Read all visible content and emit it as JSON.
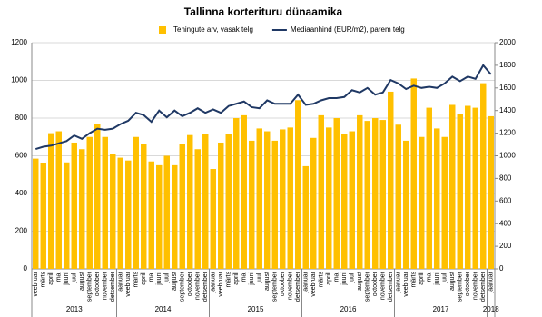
{
  "chart_data": {
    "type": "bar",
    "title": "Tallinna korterituru dünaamika",
    "groups": [
      {
        "label": "2013",
        "categories": [
          "veebruar",
          "märts",
          "aprill",
          "mai",
          "juuni",
          "juuli",
          "august",
          "september",
          "oktoober",
          "november",
          "detsember"
        ]
      },
      {
        "label": "2014",
        "categories": [
          "jaanuar",
          "veebruar",
          "märts",
          "aprill",
          "mai",
          "juuni",
          "juuli",
          "august",
          "september",
          "oktoober",
          "november",
          "detsember"
        ]
      },
      {
        "label": "2015",
        "categories": [
          "jaanuar",
          "veebruar",
          "märts",
          "aprill",
          "mai",
          "juuni",
          "juuli",
          "august",
          "september",
          "oktoober",
          "november",
          "detsember"
        ]
      },
      {
        "label": "2016",
        "categories": [
          "jaanuar",
          "veebruar",
          "märts",
          "aprill",
          "mai",
          "juuni",
          "juuli",
          "august",
          "september",
          "oktoober",
          "november",
          "detsember"
        ]
      },
      {
        "label": "2017",
        "categories": [
          "jaanuar",
          "veebruar",
          "märts",
          "aprill",
          "mai",
          "juuni",
          "juuli",
          "august",
          "september",
          "oktoober",
          "november",
          "detsember"
        ]
      },
      {
        "label": "2018",
        "categories": [
          "jaanuar"
        ]
      }
    ],
    "series": [
      {
        "name": "Tehingute arv, vasak telg",
        "type": "bar",
        "color": "#FFC000",
        "values": [
          585,
          560,
          720,
          730,
          565,
          670,
          635,
          700,
          770,
          700,
          610,
          590,
          575,
          700,
          665,
          570,
          550,
          600,
          550,
          665,
          710,
          635,
          715,
          530,
          670,
          715,
          800,
          815,
          680,
          745,
          730,
          680,
          740,
          750,
          895,
          545,
          695,
          815,
          750,
          800,
          715,
          730,
          815,
          785,
          800,
          790,
          940,
          765,
          680,
          1010,
          700,
          855,
          745,
          700,
          870,
          820,
          865,
          855,
          985,
          810
        ]
      },
      {
        "name": "Mediaanhind (EUR/m2), parem telg",
        "type": "line",
        "axis": "y2",
        "color": "#1F3864",
        "values": [
          1060,
          1080,
          1090,
          1110,
          1130,
          1180,
          1150,
          1200,
          1240,
          1230,
          1240,
          1280,
          1310,
          1380,
          1360,
          1300,
          1400,
          1340,
          1400,
          1350,
          1380,
          1420,
          1380,
          1410,
          1380,
          1440,
          1460,
          1480,
          1430,
          1420,
          1490,
          1460,
          1460,
          1460,
          1540,
          1450,
          1460,
          1490,
          1510,
          1510,
          1520,
          1580,
          1560,
          1600,
          1540,
          1560,
          1670,
          1640,
          1590,
          1620,
          1600,
          1610,
          1600,
          1640,
          1700,
          1660,
          1700,
          1680,
          1800,
          1720
        ]
      }
    ],
    "ylim": [
      0,
      1200
    ],
    "yticks": [
      0,
      200,
      400,
      600,
      800,
      1000,
      1200
    ],
    "y2lim": [
      0,
      2000
    ],
    "y2ticks": [
      0,
      200,
      400,
      600,
      800,
      1000,
      1200,
      1400,
      1600,
      1800,
      2000
    ],
    "grid": true,
    "legend": "top"
  }
}
